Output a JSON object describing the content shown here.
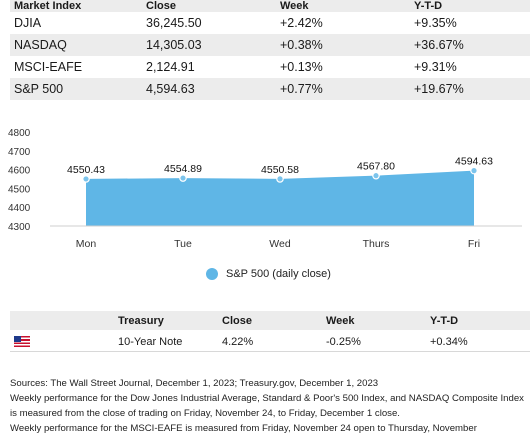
{
  "indices": {
    "header": [
      "Market Index",
      "Close",
      "Week",
      "Y-T-D"
    ],
    "rows": [
      {
        "name": "DJIA",
        "close": "36,245.50",
        "week": "+2.42%",
        "ytd": "+9.35%"
      },
      {
        "name": "NASDAQ",
        "close": "14,305.03",
        "week": "+0.38%",
        "ytd": "+36.67%"
      },
      {
        "name": "MSCI-EAFE",
        "close": "2,124.91",
        "week": "+0.13%",
        "ytd": "+9.31%"
      },
      {
        "name": "S&P 500",
        "close": "4,594.63",
        "week": "+0.77%",
        "ytd": "+19.67%"
      }
    ]
  },
  "chart_data": {
    "type": "area",
    "categories": [
      "Mon",
      "Tue",
      "Wed",
      "Thurs",
      "Fri"
    ],
    "series": [
      {
        "name": "S&P 500 (daily close)",
        "values": [
          4550.43,
          4554.89,
          4550.58,
          4567.8,
          4594.63
        ],
        "color": "#5fb6e6"
      }
    ],
    "data_labels": [
      "4550.43",
      "4554.89",
      "4550.58",
      "4567.80",
      "4594.63"
    ],
    "yticks": [
      4800,
      4700,
      4600,
      4500,
      4400,
      4300
    ],
    "ylim": [
      4300,
      4800
    ],
    "title": "",
    "xlabel": "",
    "ylabel": "",
    "grid": false,
    "legend": "bottom"
  },
  "legend_label": "S&P 500 (daily close)",
  "treasury": {
    "header": [
      "",
      "Treasury",
      "Close",
      "Week",
      "Y-T-D"
    ],
    "row": {
      "flag_icon": "us-flag-icon",
      "name": "10-Year Note",
      "close": "4.22%",
      "week": "-0.25%",
      "ytd": "+0.34%"
    }
  },
  "footnotes": [
    "Sources: The Wall Street Journal, December 1, 2023; Treasury.gov, December 1, 2023",
    "Weekly performance for the Dow Jones Industrial Average, Standard & Poor's 500 Index, and NASDAQ Composite Index is measured from the close of trading on Friday, November 24, to Friday, December 1 close.",
    "Weekly performance for the MSCI-EAFE is measured from Friday, November 24 open to Thursday, November"
  ]
}
